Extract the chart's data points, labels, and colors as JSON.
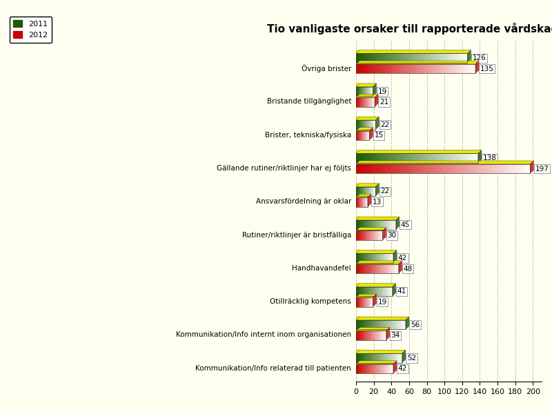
{
  "title": "Tio vanligaste orsaker till rapporterade vårdskador inom HSF",
  "categories": [
    "Kommunikation/Info relaterad till patienten",
    "Kommunikation/Info internt inom organisationen",
    "Otillräcklig kompetens",
    "Handhavandefel",
    "Rutiner/riktlinjer är bristfälliga",
    "Ansvarsfördelning är oklar",
    "Gällande rutiner/riktlinjer har ej följts",
    "Brister, tekniska/fysiska",
    "Bristande tillgänglighet",
    "Övriga brister"
  ],
  "values_2011": [
    52,
    56,
    41,
    42,
    45,
    22,
    138,
    22,
    19,
    126
  ],
  "values_2012": [
    42,
    34,
    19,
    48,
    30,
    13,
    197,
    15,
    21,
    135
  ],
  "color_2011_dark": "#1a5c00",
  "color_2011_light": "#ffffff",
  "color_2012_dark": "#cc0000",
  "color_2012_light": "#ffffff",
  "color_top": "#e8e800",
  "xlabel": "",
  "xlim": [
    0,
    210
  ],
  "bar_height": 0.28,
  "background_color": "#fffff0",
  "grid_color": "#888888",
  "legend_2011": "2011",
  "legend_2012": "2012"
}
